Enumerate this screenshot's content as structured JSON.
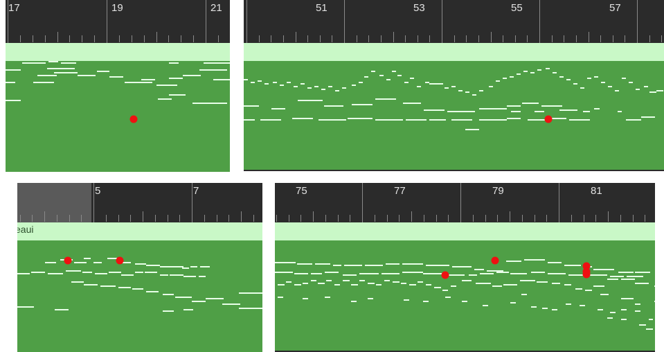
{
  "panels": [
    {
      "id": "panel-1",
      "bar_labels": [
        "17",
        "19",
        "21"
      ],
      "region_name": "",
      "marker_count": 1,
      "colors": {
        "ruler": "#2b2b2b",
        "band": "#c9f8c7",
        "region": "#4f9f46",
        "note": "#e8ffe8",
        "marker": "#ee1111"
      }
    },
    {
      "id": "panel-2",
      "bar_labels": [
        "51",
        "53",
        "55",
        "57"
      ],
      "region_name": "",
      "marker_count": 1,
      "colors": {
        "ruler": "#2b2b2b",
        "band": "#c9f8c7",
        "region": "#4f9f46",
        "note": "#e8ffe8",
        "marker": "#ee1111"
      }
    },
    {
      "id": "panel-3",
      "bar_labels": [
        "5",
        "7"
      ],
      "region_name": "eaui",
      "marker_count": 2,
      "colors": {
        "ruler": "#2b2b2b",
        "band": "#c9f8c7",
        "region": "#4f9f46",
        "note": "#e8ffe8",
        "marker": "#ee1111"
      }
    },
    {
      "id": "panel-4",
      "bar_labels": [
        "75",
        "77",
        "79",
        "81"
      ],
      "region_name": "",
      "marker_count": 5,
      "colors": {
        "ruler": "#2b2b2b",
        "band": "#c9f8c7",
        "region": "#4f9f46",
        "note": "#e8ffe8",
        "marker": "#ee1111"
      }
    }
  ]
}
